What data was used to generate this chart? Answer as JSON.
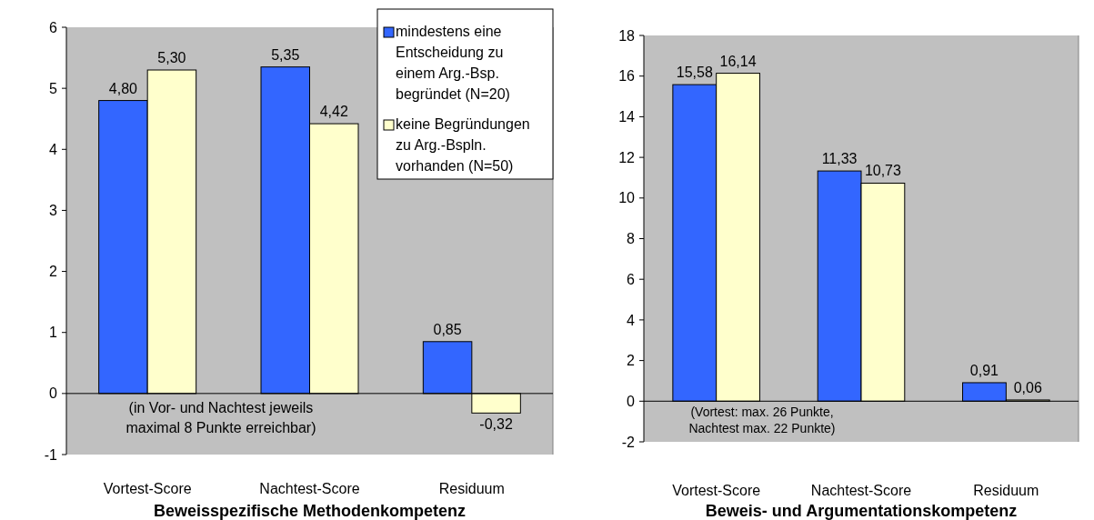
{
  "chart_data": [
    {
      "type": "bar",
      "title": "Beweisspezifische Methodenkompetenz",
      "categories": [
        "Vortest-Score",
        "Nachtest-Score",
        "Residuum"
      ],
      "series": [
        {
          "name": "mindestens eine Entscheidung zu einem Arg.-Bsp. begründet (N=20)",
          "color": "#3366ff",
          "values": [
            4.8,
            5.35,
            0.85
          ],
          "value_labels": [
            "4,80",
            "5,35",
            "0,85"
          ]
        },
        {
          "name": "keine Begründungen zu Arg.-Bspln. vorhanden (N=50)",
          "color": "#ffffcc",
          "values": [
            5.3,
            4.42,
            -0.32
          ],
          "value_labels": [
            "5,30",
            "4,42",
            "-0,32"
          ]
        }
      ],
      "ylim": [
        -1,
        6
      ],
      "yticks": [
        -1,
        0,
        1,
        2,
        3,
        4,
        5,
        6
      ],
      "legend": "top right",
      "annotations": [
        "(in Vor- und Nachtest jeweils\nmaximal 8 Punkte erreichbar)"
      ]
    },
    {
      "type": "bar",
      "title": "Beweis- und Argumentationskompetenz",
      "categories": [
        "Vortest-Score",
        "Nachtest-Score",
        "Residuum"
      ],
      "series": [
        {
          "color": "#3366ff",
          "values": [
            15.58,
            11.33,
            0.91
          ],
          "value_labels": [
            "15,58",
            "11,33",
            "0,91"
          ]
        },
        {
          "color": "#ffffcc",
          "values": [
            16.14,
            10.73,
            0.06
          ],
          "value_labels": [
            "16,14",
            "10,73",
            "0,06"
          ]
        }
      ],
      "ylim": [
        -2,
        18
      ],
      "yticks": [
        -2,
        0,
        2,
        4,
        6,
        8,
        10,
        12,
        14,
        16,
        18
      ],
      "annotations": [
        "(Vortest: max. 26 Punkte,\nNachtest max. 22 Punkte)"
      ]
    }
  ]
}
